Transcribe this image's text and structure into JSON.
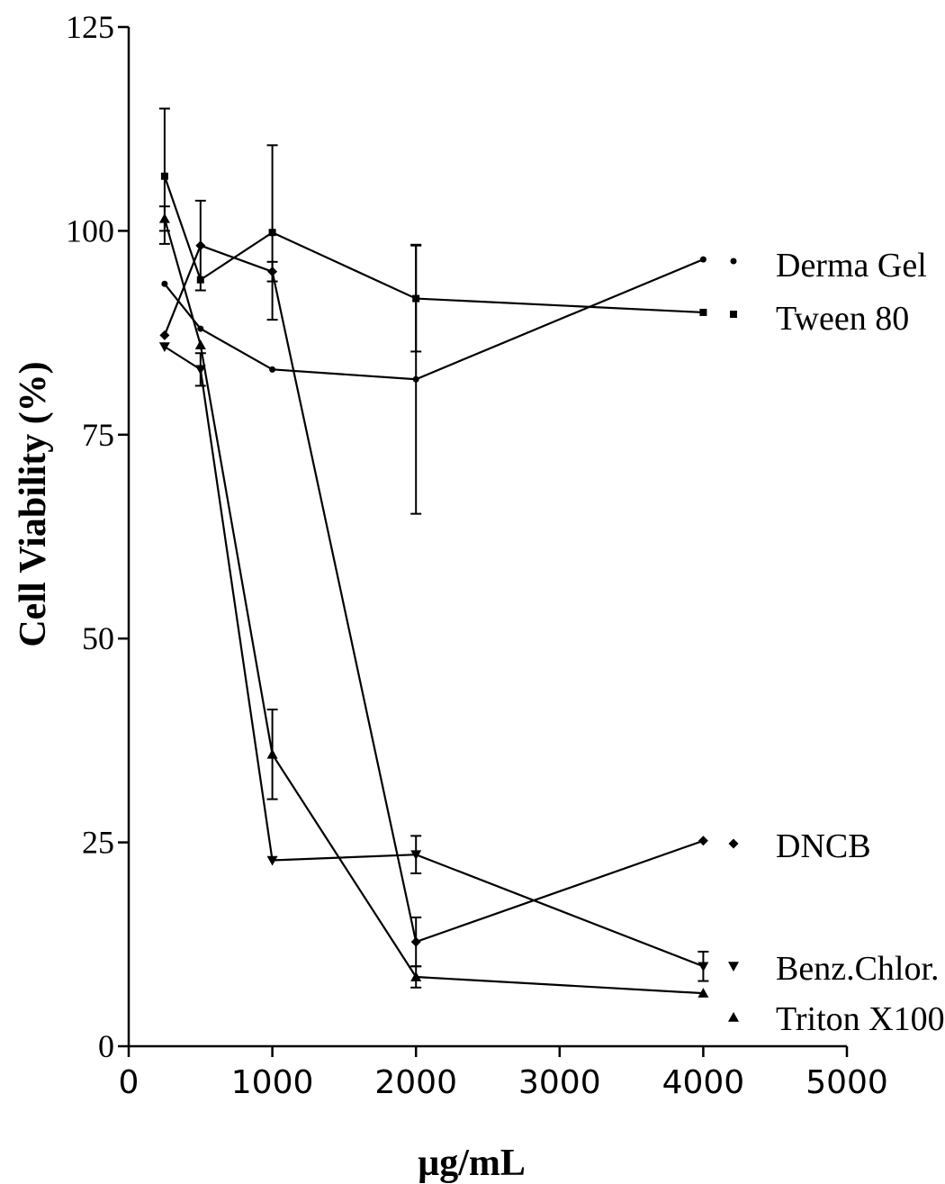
{
  "chart_data": {
    "type": "line",
    "xlabel": "µg/mL",
    "ylabel": "Cell Viability (%)",
    "xlim": [
      0,
      5000
    ],
    "ylim": [
      0,
      125
    ],
    "xticks": [
      0,
      1000,
      2000,
      3000,
      4000,
      5000
    ],
    "yticks": [
      0,
      25,
      50,
      75,
      100,
      125
    ],
    "grid": false,
    "legend_placement": "right",
    "series": [
      {
        "name": "Derma Gel",
        "marker": "circle",
        "x": [
          250,
          500,
          1000,
          2000,
          4000
        ],
        "y": [
          93.5,
          88,
          83,
          81.8,
          96.5
        ],
        "err": [
          0,
          0,
          0,
          16.5,
          0
        ]
      },
      {
        "name": "Tween 80",
        "marker": "square",
        "x": [
          250,
          500,
          1000,
          2000,
          4000
        ],
        "y": [
          106.7,
          94,
          99.8,
          91.7,
          90
        ],
        "err": [
          8.3,
          0,
          10.7,
          6.5,
          0
        ]
      },
      {
        "name": "DNCB",
        "marker": "diamond",
        "x": [
          250,
          500,
          1000,
          2000,
          4000
        ],
        "y": [
          87.2,
          98.2,
          95,
          12.8,
          25.2
        ],
        "err": [
          0,
          5.5,
          1.2,
          3,
          0
        ]
      },
      {
        "name": "Benz.Chlor.",
        "marker": "triangle-down",
        "x": [
          250,
          500,
          1000,
          2000,
          4000
        ],
        "y": [
          85.8,
          83,
          22.8,
          23.5,
          9.8
        ],
        "err": [
          0,
          2,
          0,
          2.3,
          1.8
        ]
      },
      {
        "name": "Triton X100",
        "marker": "triangle-up",
        "x": [
          250,
          500,
          1000,
          2000,
          4000
        ],
        "y": [
          101.5,
          86,
          35.8,
          8.5,
          6.5
        ],
        "err": [
          1.5,
          0,
          5.5,
          1.3,
          0
        ]
      }
    ]
  }
}
